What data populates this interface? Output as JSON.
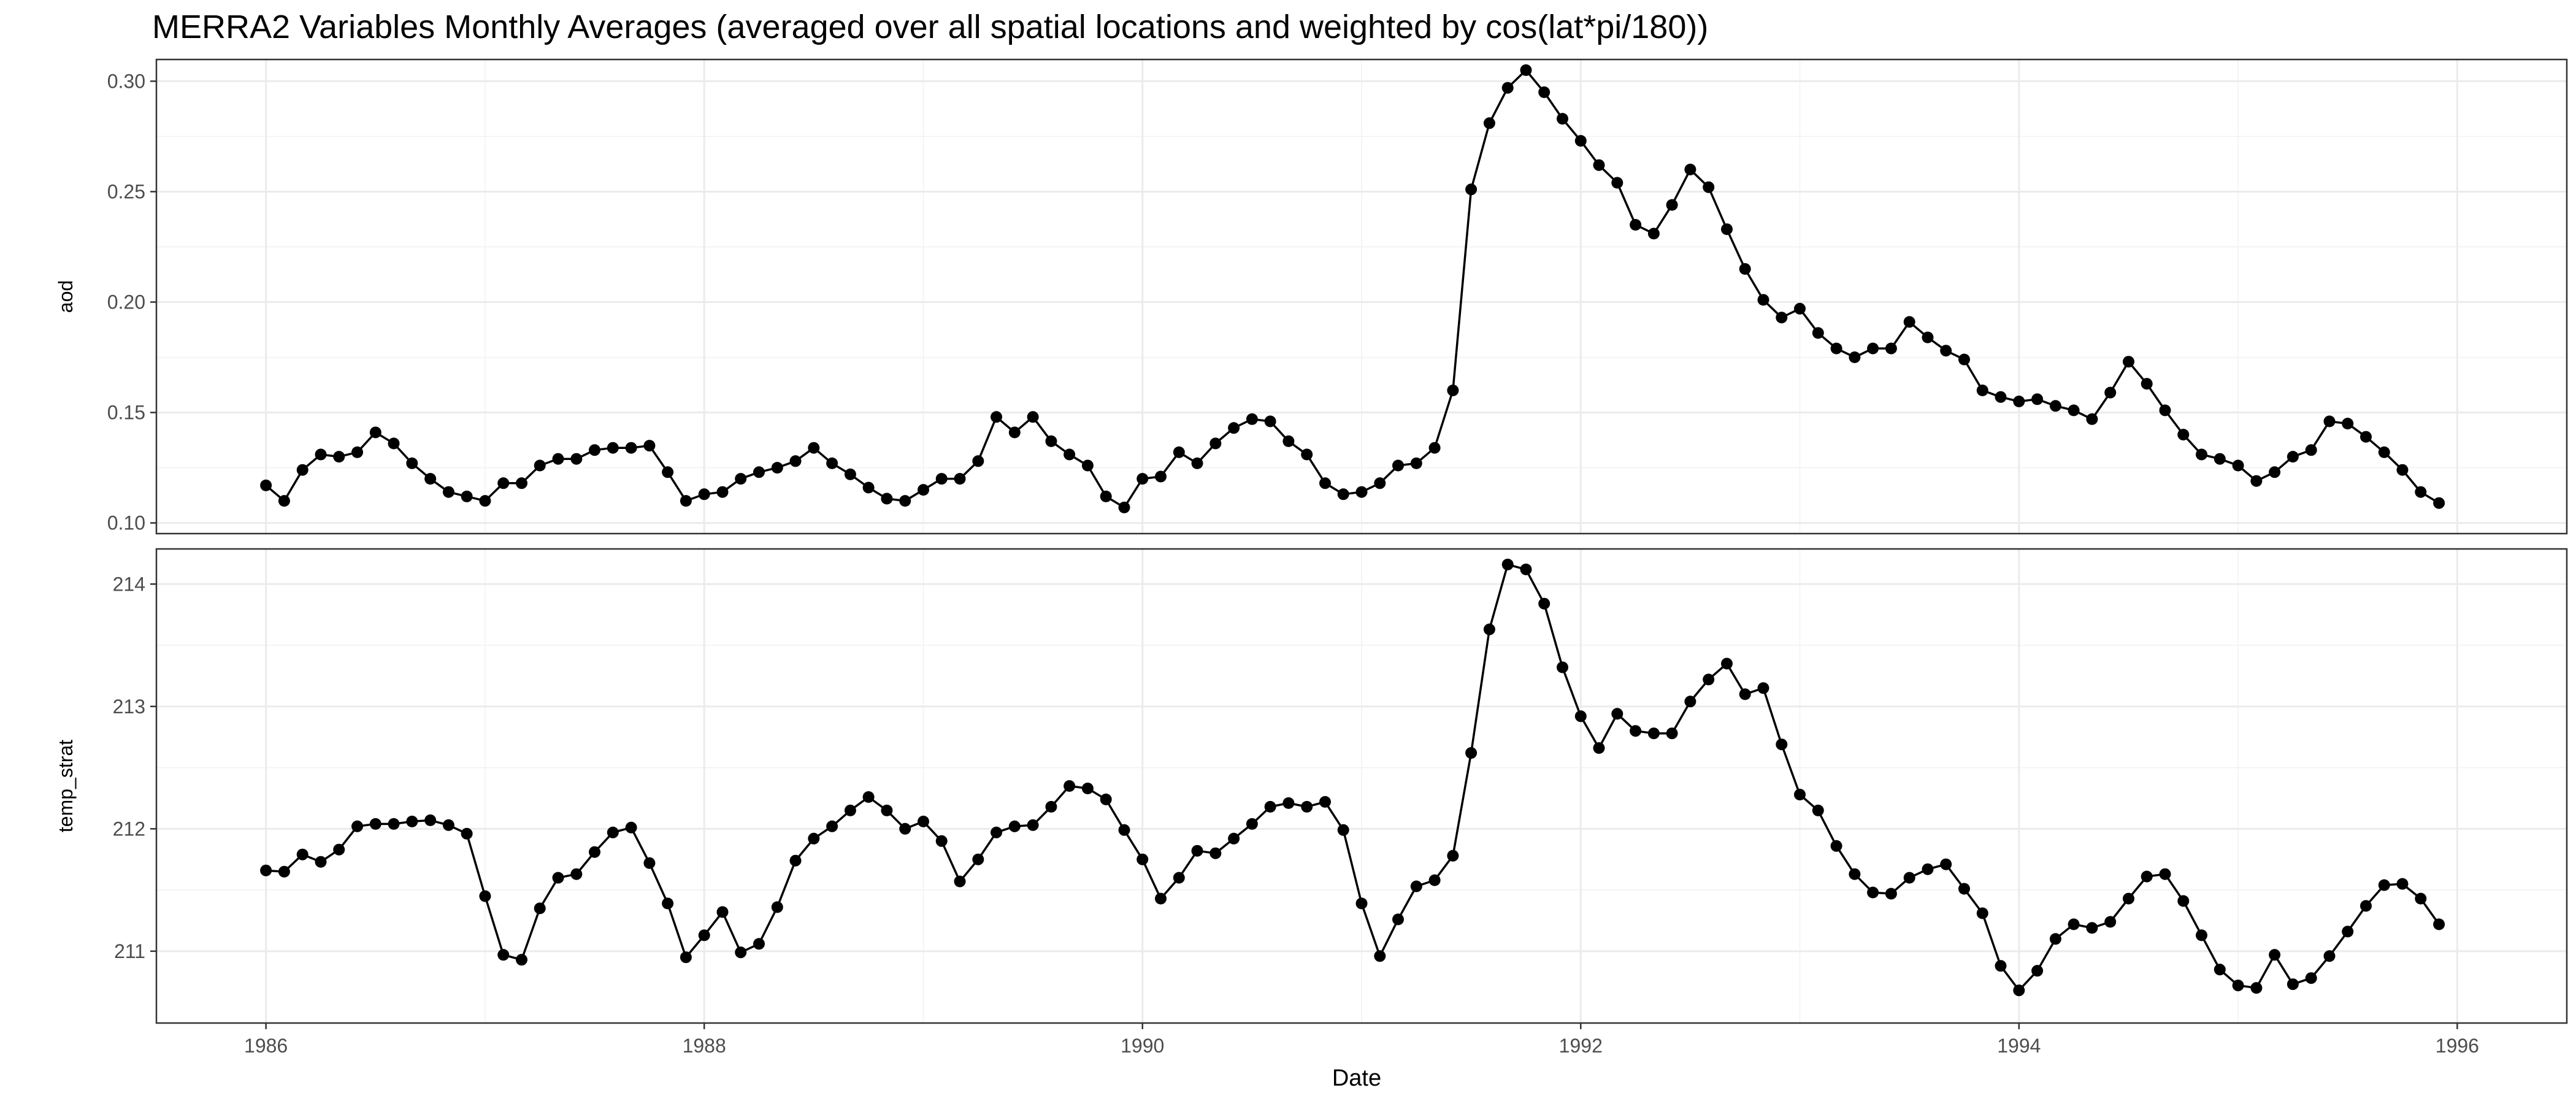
{
  "chart_data": {
    "type": "line",
    "title": "MERRA2 Variables Monthly Averages (averaged over all spatial locations and weighted by cos(lat*pi/180))",
    "xlabel": "Date",
    "x_start": "1986-01",
    "x_step": "1 month",
    "x_ticks": [
      "1986",
      "1988",
      "1990",
      "1992",
      "1994",
      "1996"
    ],
    "xlim": [
      "1985-07",
      "1996-07"
    ],
    "grid": true,
    "theme": "black-and-white",
    "line_color": "#000000",
    "panels": [
      {
        "ylabel": "aod",
        "ylim": [
          0.1,
          0.305
        ],
        "y_ticks": [
          "0.10",
          "0.15",
          "0.20",
          "0.25",
          "0.30"
        ],
        "values": [
          0.117,
          0.11,
          0.124,
          0.131,
          0.13,
          0.132,
          0.141,
          0.136,
          0.127,
          0.12,
          0.114,
          0.112,
          0.11,
          0.118,
          0.118,
          0.126,
          0.129,
          0.129,
          0.133,
          0.134,
          0.134,
          0.135,
          0.123,
          0.11,
          0.113,
          0.114,
          0.12,
          0.123,
          0.125,
          0.128,
          0.134,
          0.127,
          0.122,
          0.116,
          0.111,
          0.11,
          0.115,
          0.12,
          0.12,
          0.128,
          0.148,
          0.141,
          0.148,
          0.137,
          0.131,
          0.126,
          0.112,
          0.107,
          0.12,
          0.121,
          0.132,
          0.127,
          0.136,
          0.143,
          0.147,
          0.146,
          0.137,
          0.131,
          0.118,
          0.113,
          0.114,
          0.118,
          0.126,
          0.127,
          0.134,
          0.16,
          0.251,
          0.281,
          0.297,
          0.305,
          0.295,
          0.283,
          0.273,
          0.262,
          0.254,
          0.235,
          0.231,
          0.244,
          0.26,
          0.252,
          0.233,
          0.215,
          0.201,
          0.193,
          0.197,
          0.186,
          0.179,
          0.175,
          0.179,
          0.179,
          0.191,
          0.184,
          0.178,
          0.174,
          0.16,
          0.157,
          0.155,
          0.156,
          0.153,
          0.151,
          0.147,
          0.159,
          0.173,
          0.163,
          0.151,
          0.14,
          0.131,
          0.129,
          0.126,
          0.119,
          0.123,
          0.13,
          0.133,
          0.146,
          0.145,
          0.139,
          0.132,
          0.124,
          0.114,
          0.109
        ]
      },
      {
        "ylabel": "temp_strat",
        "ylim": [
          210.5,
          214.2
        ],
        "y_ticks": [
          "211",
          "212",
          "213",
          "214"
        ],
        "values": [
          211.66,
          211.65,
          211.79,
          211.73,
          211.83,
          212.02,
          212.04,
          212.04,
          212.06,
          212.07,
          212.03,
          211.96,
          211.45,
          210.97,
          210.93,
          211.35,
          211.6,
          211.63,
          211.81,
          211.97,
          212.01,
          211.72,
          211.39,
          210.95,
          211.13,
          211.32,
          210.99,
          211.06,
          211.36,
          211.74,
          211.92,
          212.02,
          212.15,
          212.26,
          212.15,
          212.0,
          212.06,
          211.9,
          211.57,
          211.75,
          211.97,
          212.02,
          212.03,
          212.18,
          212.35,
          212.33,
          212.24,
          211.99,
          211.75,
          211.43,
          211.6,
          211.82,
          211.8,
          211.92,
          212.04,
          212.18,
          212.21,
          212.18,
          212.22,
          211.99,
          211.39,
          210.96,
          211.26,
          211.53,
          211.58,
          211.78,
          212.62,
          213.63,
          214.16,
          214.12,
          213.84,
          213.32,
          212.92,
          212.66,
          212.94,
          212.8,
          212.78,
          212.78,
          213.04,
          213.22,
          213.35,
          213.1,
          213.15,
          212.69,
          212.28,
          212.15,
          211.86,
          211.63,
          211.48,
          211.47,
          211.6,
          211.67,
          211.71,
          211.51,
          211.31,
          210.88,
          210.68,
          210.84,
          211.1,
          211.22,
          211.19,
          211.24,
          211.43,
          211.61,
          211.63,
          211.41,
          211.13,
          210.85,
          210.72,
          210.7,
          210.97,
          210.73,
          210.78,
          210.96,
          211.16,
          211.37,
          211.54,
          211.55,
          211.43,
          211.22
        ]
      }
    ]
  }
}
